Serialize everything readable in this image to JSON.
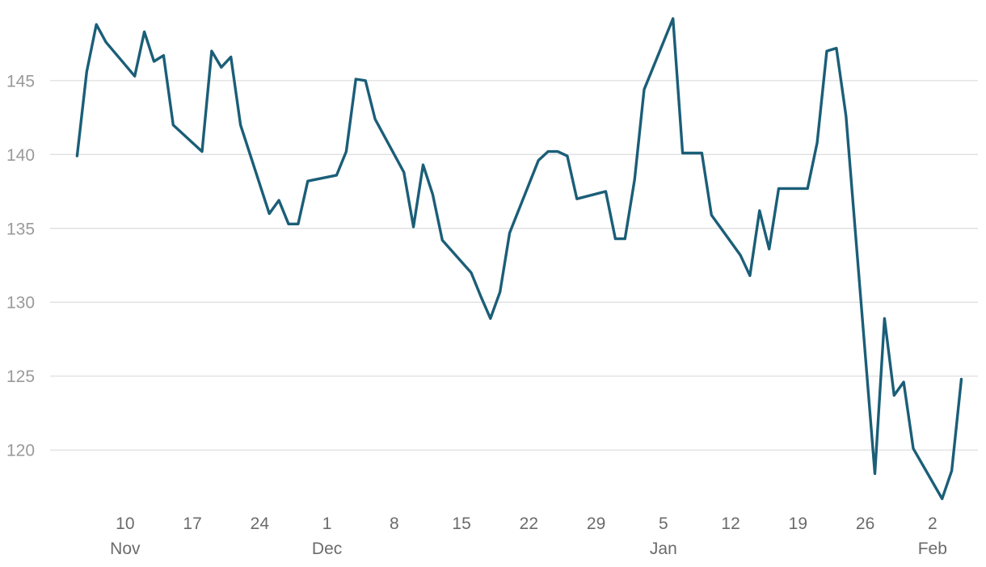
{
  "chart_data": {
    "type": "line",
    "title": "",
    "xlabel": "",
    "ylabel": "",
    "ylim": [
      115.8,
      149.8
    ],
    "xlim": [
      "2022-11-04",
      "2023-02-05"
    ],
    "grid": {
      "y": true,
      "x": false
    },
    "colors": {
      "series": "#1b5e78",
      "grid": "#dcdcdc",
      "tick": "#9a9a9a",
      "xtick": "#6b6b6b"
    },
    "y_ticks": [
      {
        "value": 120,
        "label": "120"
      },
      {
        "value": 125,
        "label": "125"
      },
      {
        "value": 130,
        "label": "130"
      },
      {
        "value": 135,
        "label": "135"
      },
      {
        "value": 140,
        "label": "140"
      },
      {
        "value": 145,
        "label": "145"
      }
    ],
    "x_ticks": [
      {
        "date": "2022-11-10",
        "label": "10",
        "month": "Nov"
      },
      {
        "date": "2022-11-17",
        "label": "17",
        "month": ""
      },
      {
        "date": "2022-11-24",
        "label": "24",
        "month": ""
      },
      {
        "date": "2022-12-01",
        "label": "1",
        "month": "Dec"
      },
      {
        "date": "2022-12-08",
        "label": "8",
        "month": ""
      },
      {
        "date": "2022-12-15",
        "label": "15",
        "month": ""
      },
      {
        "date": "2022-12-22",
        "label": "22",
        "month": ""
      },
      {
        "date": "2022-12-29",
        "label": "29",
        "month": ""
      },
      {
        "date": "2023-01-05",
        "label": "5",
        "month": "Jan"
      },
      {
        "date": "2023-01-12",
        "label": "12",
        "month": ""
      },
      {
        "date": "2023-01-19",
        "label": "19",
        "month": ""
      },
      {
        "date": "2023-01-26",
        "label": "26",
        "month": ""
      },
      {
        "date": "2023-02-02",
        "label": "2",
        "month": "Feb"
      }
    ],
    "series": [
      {
        "x": [
          "2022-11-05",
          "2022-11-06",
          "2022-11-07",
          "2022-11-08",
          "2022-11-11",
          "2022-11-12",
          "2022-11-13",
          "2022-11-14",
          "2022-11-15",
          "2022-11-18",
          "2022-11-19",
          "2022-11-20",
          "2022-11-21",
          "2022-11-22",
          "2022-11-25",
          "2022-11-26",
          "2022-11-27",
          "2022-11-28",
          "2022-11-29",
          "2022-12-02",
          "2022-12-03",
          "2022-12-04",
          "2022-12-05",
          "2022-12-06",
          "2022-12-09",
          "2022-12-10",
          "2022-12-11",
          "2022-12-12",
          "2022-12-13",
          "2022-12-16",
          "2022-12-17",
          "2022-12-18",
          "2022-12-19",
          "2022-12-20",
          "2022-12-23",
          "2022-12-24",
          "2022-12-25",
          "2022-12-26",
          "2022-12-27",
          "2022-12-30",
          "2022-12-31",
          "2023-01-01",
          "2023-01-02",
          "2023-01-03",
          "2023-01-06",
          "2023-01-07",
          "2023-01-08",
          "2023-01-09",
          "2023-01-10",
          "2023-01-13",
          "2023-01-14",
          "2023-01-15",
          "2023-01-16",
          "2023-01-17",
          "2023-01-20",
          "2023-01-21",
          "2023-01-22",
          "2023-01-23",
          "2023-01-24",
          "2023-01-27",
          "2023-01-28",
          "2023-01-29",
          "2023-01-30",
          "2023-01-31",
          "2023-02-03",
          "2023-02-04",
          "2023-02-05"
        ],
        "y": [
          139.9,
          145.6,
          148.8,
          147.6,
          145.3,
          148.3,
          146.3,
          146.7,
          142.0,
          140.2,
          147.0,
          145.9,
          146.6,
          142.0,
          136.0,
          136.9,
          135.3,
          135.3,
          138.2,
          138.6,
          140.2,
          145.1,
          145.0,
          142.4,
          138.8,
          135.1,
          139.3,
          137.3,
          134.2,
          132.0,
          130.4,
          128.9,
          130.7,
          134.7,
          139.6,
          140.2,
          140.2,
          139.9,
          137.0,
          137.5,
          134.3,
          134.3,
          138.3,
          144.4,
          149.2,
          140.1,
          140.1,
          140.1,
          135.9,
          133.2,
          131.8,
          136.2,
          133.6,
          137.7,
          137.7,
          140.8,
          147.0,
          147.2,
          142.6,
          118.4,
          128.9,
          123.7,
          124.6,
          120.1,
          116.7,
          118.6,
          124.8
        ]
      }
    ]
  }
}
